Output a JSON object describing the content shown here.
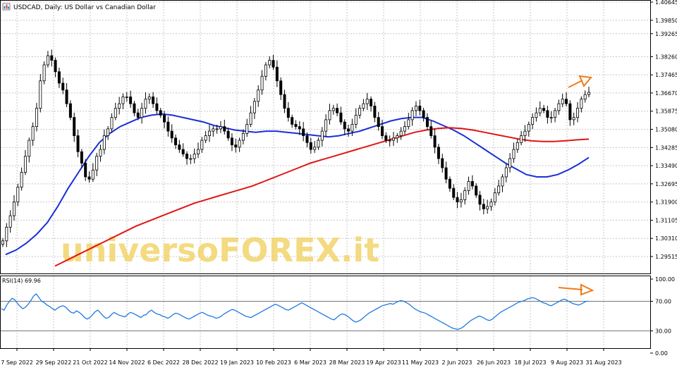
{
  "chart_data": {
    "type": "line",
    "symbol_icon": "chart-window-icon",
    "title": "USDCAD, Daily:  US Dollar vs Canadian Dollar",
    "watermark": "universoFOREX.it",
    "price_axis": {
      "ticks": [
        "1.40645",
        "1.39850",
        "1.39265",
        "1.38260",
        "1.37465",
        "1.36670",
        "1.35875",
        "1.35080",
        "1.34285",
        "1.33490",
        "1.32695",
        "1.31900",
        "1.31105",
        "1.30310",
        "1.29515"
      ],
      "ylim": [
        1.29515,
        1.40645
      ]
    },
    "x_labels": [
      "7 Sep 2022",
      "29 Sep 2022",
      "21 Oct 2022",
      "14 Nov 2022",
      "6 Dec 2022",
      "28 Dec 2022",
      "19 Jan 2023",
      "10 Feb 2023",
      "6 Mar 2023",
      "28 Mar 2023",
      "19 Apr 2023",
      "11 May 2023",
      "2 Jun 2023",
      "26 Jun 2023",
      "18 Jul 2023",
      "9 Aug 2023",
      "31 Aug 2023"
    ],
    "series": [
      {
        "color": "#1a2fd6",
        "closes": [
          1.302,
          1.308,
          1.313,
          1.319,
          1.3255,
          1.332,
          1.339,
          1.346,
          1.352,
          1.36,
          1.372,
          1.379,
          1.383,
          1.381,
          1.376,
          1.371,
          1.368,
          1.362,
          1.356,
          1.348,
          1.341,
          1.336,
          1.33,
          1.329,
          1.333,
          1.339,
          1.342,
          1.348,
          1.351,
          1.356,
          1.36,
          1.362,
          1.365,
          1.365,
          1.362,
          1.358,
          1.356,
          1.36,
          1.364,
          1.365,
          1.362,
          1.359,
          1.357,
          1.354,
          1.35,
          1.347,
          1.344,
          1.342,
          1.34,
          1.338,
          1.338,
          1.34,
          1.342,
          1.346,
          1.348,
          1.35,
          1.351,
          1.351,
          1.352,
          1.35,
          1.347,
          1.344,
          1.343,
          1.346,
          1.349,
          1.353,
          1.358,
          1.363,
          1.368,
          1.374,
          1.379,
          1.381,
          1.378,
          1.372,
          1.366,
          1.36,
          1.356,
          1.353,
          1.352,
          1.351,
          1.348,
          1.345,
          1.342,
          1.343,
          1.346,
          1.35,
          1.355,
          1.359,
          1.36,
          1.358,
          1.354,
          1.351,
          1.35,
          1.353,
          1.357,
          1.36,
          1.362,
          1.364,
          1.361,
          1.356,
          1.352,
          1.348,
          1.346,
          1.346,
          1.347,
          1.348,
          1.35,
          1.352,
          1.355,
          1.359,
          1.361,
          1.359,
          1.356,
          1.352,
          1.348,
          1.343,
          1.338,
          1.334,
          1.329,
          1.325,
          1.321,
          1.319,
          1.32,
          1.324,
          1.328,
          1.326,
          1.322,
          1.318,
          1.316,
          1.317,
          1.319,
          1.323,
          1.326,
          1.33,
          1.334,
          1.338,
          1.342,
          1.345,
          1.348,
          1.35,
          1.353,
          1.356,
          1.358,
          1.36,
          1.359,
          1.356,
          1.356,
          1.359,
          1.362,
          1.364,
          1.362,
          1.355,
          1.356,
          1.36,
          1.364,
          1.366,
          1.367
        ]
      },
      {
        "color": "#1a2fd6",
        "ma": [
          1.296,
          1.298,
          1.301,
          1.305,
          1.31,
          1.317,
          1.325,
          1.332,
          1.339,
          1.345,
          1.349,
          1.352,
          1.354,
          1.356,
          1.357,
          1.3575,
          1.357,
          1.356,
          1.355,
          1.354,
          1.3525,
          1.3515,
          1.3505,
          1.35,
          1.3495,
          1.35,
          1.35,
          1.3495,
          1.349,
          1.3485,
          1.348,
          1.3475,
          1.348,
          1.349,
          1.35,
          1.3515,
          1.353,
          1.3545,
          1.3555,
          1.356,
          1.356,
          1.3545,
          1.3525,
          1.3505,
          1.348,
          1.345,
          1.342,
          1.339,
          1.336,
          1.3335,
          1.331,
          1.33,
          1.33,
          1.331,
          1.333,
          1.3355,
          1.3385
        ]
      },
      {
        "color": "#e01515",
        "ma": [
          1.291,
          1.2935,
          1.296,
          1.2985,
          1.301,
          1.3035,
          1.306,
          1.3085,
          1.3105,
          1.3125,
          1.3145,
          1.3165,
          1.3185,
          1.32,
          1.3215,
          1.323,
          1.3245,
          1.326,
          1.328,
          1.33,
          1.332,
          1.334,
          1.336,
          1.3375,
          1.339,
          1.3405,
          1.342,
          1.3435,
          1.345,
          1.3465,
          1.348,
          1.3495,
          1.3505,
          1.3512,
          1.3515,
          1.3512,
          1.3505,
          1.3495,
          1.3485,
          1.3475,
          1.3465,
          1.3458,
          1.3455,
          1.3455,
          1.3458,
          1.3462,
          1.3465
        ]
      }
    ],
    "rsi": {
      "label": "RSI(14) 69.96",
      "ticks": [
        "100.00",
        "70.00",
        "30.00",
        "0.00"
      ],
      "levels": [
        70,
        30
      ],
      "ylim": [
        0,
        100
      ],
      "values": [
        60,
        58,
        65,
        70,
        74,
        72,
        67,
        63,
        60,
        62,
        66,
        71,
        77,
        80,
        75,
        70,
        68,
        65,
        63,
        60,
        58,
        61,
        63,
        64,
        62,
        58,
        55,
        54,
        57,
        55,
        52,
        48,
        46,
        48,
        52,
        56,
        58,
        54,
        50,
        47,
        48,
        52,
        55,
        53,
        51,
        50,
        49,
        52,
        55,
        54,
        52,
        50,
        48,
        51,
        52,
        56,
        58,
        55,
        53,
        52,
        50,
        49,
        47,
        49,
        52,
        54,
        53,
        51,
        49,
        47,
        46,
        48,
        50,
        52,
        54,
        55,
        53,
        51,
        50,
        49,
        47,
        48,
        50,
        53,
        55,
        57,
        59,
        58,
        56,
        54,
        52,
        50,
        49,
        48,
        50,
        52,
        54,
        56,
        58,
        60,
        62,
        64,
        66,
        65,
        63,
        61,
        59,
        58,
        60,
        62,
        64,
        66,
        68,
        66,
        64,
        62,
        60,
        58,
        56,
        54,
        52,
        50,
        48,
        46,
        45,
        48,
        51,
        53,
        52,
        50,
        47,
        44,
        42,
        43,
        45,
        48,
        51,
        54,
        56,
        58,
        60,
        62,
        64,
        65,
        66,
        67,
        66,
        68,
        70,
        71,
        70,
        68,
        66,
        63,
        60,
        58,
        56,
        55,
        54,
        52,
        50,
        48,
        46,
        44,
        42,
        40,
        38,
        36,
        34,
        33,
        32,
        33,
        35,
        38,
        41,
        44,
        46,
        48,
        50,
        49,
        47,
        45,
        44,
        46,
        49,
        52,
        55,
        57,
        59,
        61,
        63,
        65,
        67,
        69,
        70,
        71,
        73,
        74,
        75,
        74,
        72,
        70,
        68,
        67,
        65,
        64,
        66,
        68,
        70,
        72,
        73,
        71,
        69,
        67,
        66,
        65,
        66,
        68,
        70,
        70
      ]
    },
    "annotations": [
      {
        "type": "arrow",
        "color": "#f07a1a",
        "pane": "price"
      },
      {
        "type": "arrow",
        "color": "#f07a1a",
        "pane": "rsi"
      }
    ],
    "grid": true,
    "colors": {
      "grid": "#c8c8c8",
      "levels": "#777777",
      "rsi_line": "#1e7ae0",
      "text": "#000000"
    }
  }
}
